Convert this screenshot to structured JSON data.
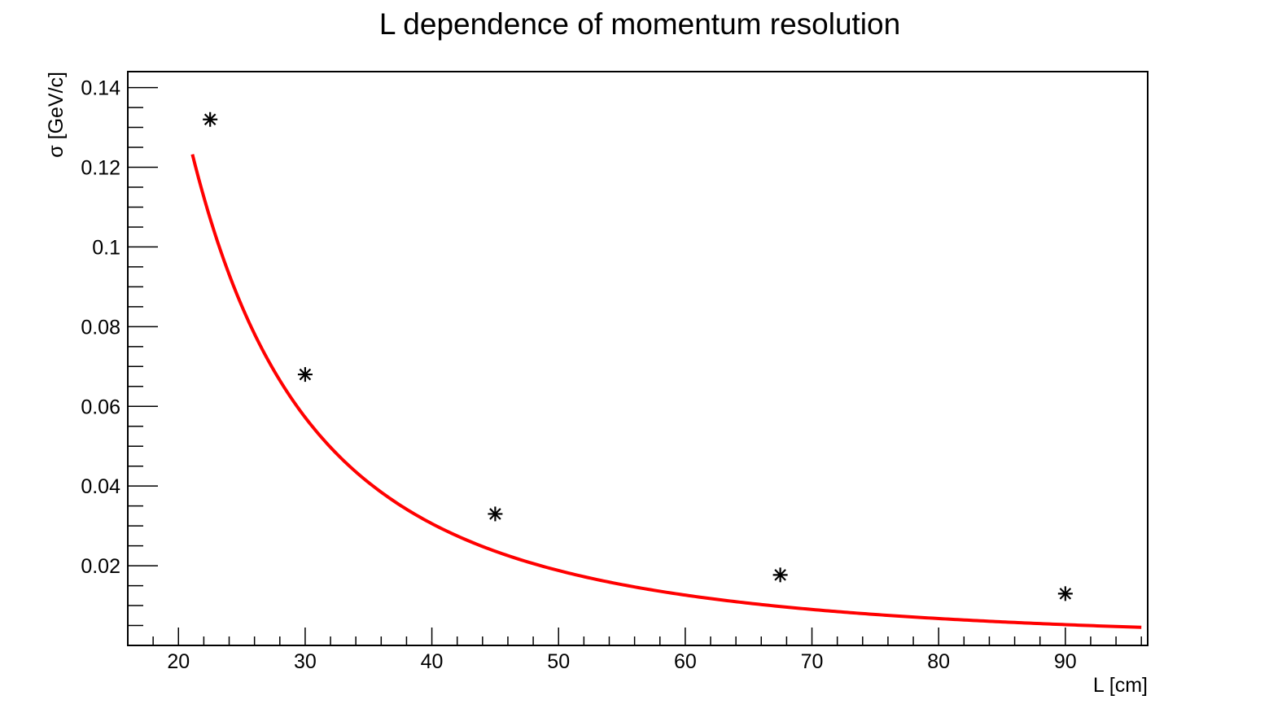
{
  "chart_data": {
    "type": "scatter",
    "title": "L dependence of momentum resolution",
    "xlabel": "L [cm]",
    "ylabel": "σ [GeV/c]",
    "xlim": [
      16,
      96.5
    ],
    "ylim": [
      0,
      0.144
    ],
    "x_ticks": [
      20,
      30,
      40,
      50,
      60,
      70,
      80,
      90
    ],
    "x_tick_labels": [
      "20",
      "30",
      "40",
      "50",
      "60",
      "70",
      "80",
      "90"
    ],
    "y_ticks": [
      0.02,
      0.04,
      0.06,
      0.08,
      0.1,
      0.12,
      0.14
    ],
    "y_tick_labels": [
      "0.02",
      "0.04",
      "0.06",
      "0.08",
      "0.1",
      "0.12",
      "0.14"
    ],
    "grid": false,
    "legend": "none",
    "series": [
      {
        "marker": "star",
        "color": "#000000",
        "x": [
          22.5,
          30,
          45,
          67.5,
          90
        ],
        "y": [
          0.132,
          0.068,
          0.033,
          0.0177,
          0.013
        ]
      }
    ],
    "fit": {
      "color": "#ff0000",
      "form": "power",
      "a": 95.0,
      "b": 2.18,
      "x_range": [
        21.1,
        96
      ]
    }
  }
}
